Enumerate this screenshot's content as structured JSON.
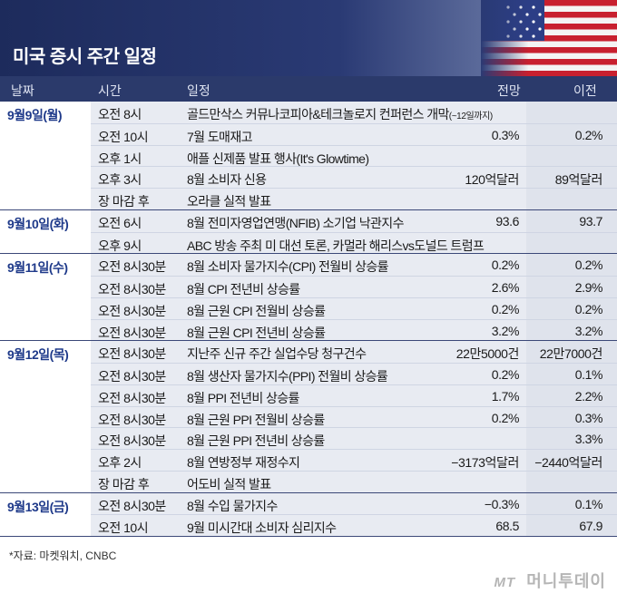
{
  "title": "미국 증시 주간 일정",
  "columns": {
    "date": "날짜",
    "time": "시간",
    "event": "일정",
    "forecast": "전망",
    "previous": "이전"
  },
  "groups": [
    {
      "date": "9월9일(월)",
      "rows": [
        {
          "time": "오전 8시",
          "event": "골드만삭스 커뮤나코피아&테크놀로지 컨퍼런스 개막",
          "note": "(~12일까지)",
          "forecast": "",
          "previous": ""
        },
        {
          "time": "오전 10시",
          "event": "7월 도매재고",
          "note": "",
          "forecast": "0.3%",
          "previous": "0.2%"
        },
        {
          "time": "오후 1시",
          "event": "애플 신제품 발표 행사(It's Glowtime)",
          "note": "",
          "forecast": "",
          "previous": ""
        },
        {
          "time": "오후 3시",
          "event": "8월 소비자 신용",
          "note": "",
          "forecast": "120억달러",
          "previous": "89억달러"
        },
        {
          "time": "장 마감 후",
          "event": "오라클 실적 발표",
          "note": "",
          "forecast": "",
          "previous": ""
        }
      ]
    },
    {
      "date": "9월10일(화)",
      "rows": [
        {
          "time": "오전 6시",
          "event": "8월 전미자영업연맹(NFIB) 소기업 낙관지수",
          "note": "",
          "forecast": "93.6",
          "previous": "93.7"
        },
        {
          "time": "오후 9시",
          "event": "ABC 방송 주최 미 대선 토론, 카멀라 해리스vs도널드 트럼프",
          "note": "",
          "forecast": "",
          "previous": ""
        }
      ]
    },
    {
      "date": "9월11일(수)",
      "rows": [
        {
          "time": "오전 8시30분",
          "event": "8월 소비자 물가지수(CPI) 전월비 상승률",
          "note": "",
          "forecast": "0.2%",
          "previous": "0.2%"
        },
        {
          "time": "오전 8시30분",
          "event": "8월 CPI 전년비 상승률",
          "note": "",
          "forecast": "2.6%",
          "previous": "2.9%"
        },
        {
          "time": "오전 8시30분",
          "event": "8월 근원 CPI 전월비 상승률",
          "note": "",
          "forecast": "0.2%",
          "previous": "0.2%"
        },
        {
          "time": "오전 8시30분",
          "event": "8월 근원 CPI 전년비 상승률",
          "note": "",
          "forecast": "3.2%",
          "previous": "3.2%"
        }
      ]
    },
    {
      "date": "9월12일(목)",
      "rows": [
        {
          "time": "오전 8시30분",
          "event": "지난주 신규 주간 실업수당 청구건수",
          "note": "",
          "forecast": "22만5000건",
          "previous": "22만7000건"
        },
        {
          "time": "오전 8시30분",
          "event": "8월 생산자 물가지수(PPI) 전월비 상승률",
          "note": "",
          "forecast": "0.2%",
          "previous": "0.1%"
        },
        {
          "time": "오전 8시30분",
          "event": "8월 PPI 전년비 상승률",
          "note": "",
          "forecast": "1.7%",
          "previous": "2.2%"
        },
        {
          "time": "오전 8시30분",
          "event": "8월 근원 PPI 전월비 상승률",
          "note": "",
          "forecast": "0.2%",
          "previous": "0.3%"
        },
        {
          "time": "오전 8시30분",
          "event": "8월 근원 PPI 전년비 상승률",
          "note": "",
          "forecast": "",
          "previous": "3.3%"
        },
        {
          "time": "오후 2시",
          "event": "8월 연방정부 재정수지",
          "note": "",
          "forecast": "−3173억달러",
          "previous": "−2440억달러"
        },
        {
          "time": "장 마감 후",
          "event": "어도비 실적 발표",
          "note": "",
          "forecast": "",
          "previous": ""
        }
      ]
    },
    {
      "date": "9월13일(금)",
      "rows": [
        {
          "time": "오전 8시30분",
          "event": "8월 수입 물가지수",
          "note": "",
          "forecast": "−0.3%",
          "previous": "0.1%"
        },
        {
          "time": "오전 10시",
          "event": "9월 미시간대 소비자 심리지수",
          "note": "",
          "forecast": "68.5",
          "previous": "67.9"
        }
      ]
    }
  ],
  "source": "*자료: 마켓워치, CNBC",
  "logo": {
    "mark": "MT",
    "name": "머니투데이"
  },
  "colors": {
    "header_bg": "#1d2b5c",
    "date_text": "#1f3a8a",
    "row_bg": "#e8ebf2"
  }
}
